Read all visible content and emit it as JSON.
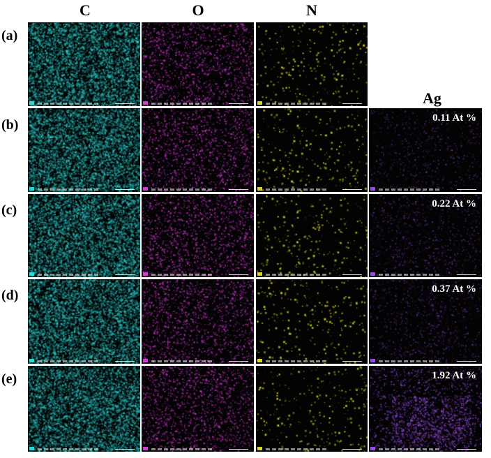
{
  "columns": [
    {
      "key": "C",
      "label": "C",
      "color": "#2fd6d6"
    },
    {
      "key": "O",
      "label": "O",
      "color": "#d63ad6"
    },
    {
      "key": "N",
      "label": "N",
      "color": "#d8d22a"
    },
    {
      "key": "Ag",
      "label": "Ag",
      "color": "#9a4ae6"
    }
  ],
  "rows": [
    {
      "label": "(a)",
      "ag_percent": null
    },
    {
      "label": "(b)",
      "ag_percent": "0.11 At %"
    },
    {
      "label": "(c)",
      "ag_percent": "0.22 At %"
    },
    {
      "label": "(d)",
      "ag_percent": "0.37 At %"
    },
    {
      "label": "(e)",
      "ag_percent": "1.92 At %"
    }
  ]
}
